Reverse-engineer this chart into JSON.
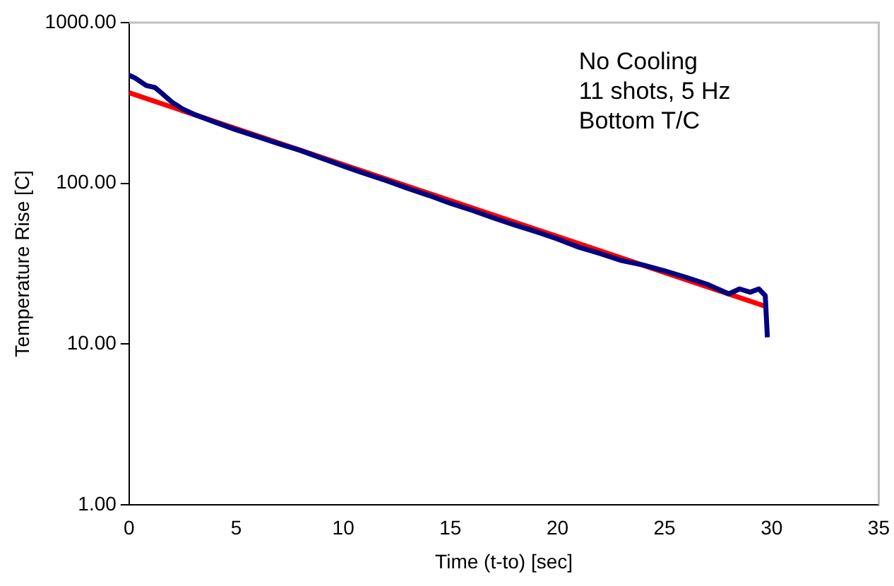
{
  "chart_data": {
    "type": "line",
    "xlabel": "Time (t-to) [sec]",
    "ylabel": "Temperature Rise [C]",
    "annotations": [
      "No Cooling",
      "11 shots, 5 Hz",
      "Bottom T/C"
    ],
    "series": [
      {
        "color": "#000080",
        "x": [
          0,
          0.3,
          0.8,
          1.2,
          1.5,
          2,
          2.5,
          3,
          4,
          5,
          6,
          7,
          8,
          9,
          10,
          11,
          12,
          13,
          14,
          15,
          16,
          17,
          18,
          19,
          20,
          21,
          22,
          23,
          24,
          25,
          26,
          27,
          28,
          28.5,
          29,
          29.4,
          29.7,
          29.8
        ],
        "values": [
          471,
          450,
          406,
          395,
          366,
          320,
          290,
          270,
          240,
          215,
          195,
          176,
          160,
          143,
          128,
          115,
          104,
          93,
          84,
          75,
          68,
          61,
          55,
          50,
          45,
          40,
          36.5,
          33,
          31,
          28.5,
          26,
          23.5,
          20.5,
          22,
          21,
          22,
          20,
          11
        ]
      },
      {
        "color": "#ff0000",
        "x": [
          0,
          29.8
        ],
        "values": [
          366,
          17
        ]
      }
    ],
    "log": "y",
    "xlim": [
      0,
      35
    ],
    "xticks": [
      0,
      5,
      10,
      15,
      20,
      25,
      30,
      35
    ],
    "ylim": [
      1,
      1000
    ],
    "yticks": [
      {
        "value": 1,
        "label": "1.00"
      },
      {
        "value": 10,
        "label": "10.00"
      },
      {
        "value": 100,
        "label": "100.00"
      },
      {
        "value": 1000,
        "label": "1000.00"
      }
    ],
    "grid": false,
    "legend": false,
    "marker": "none",
    "line_style": "solid"
  }
}
